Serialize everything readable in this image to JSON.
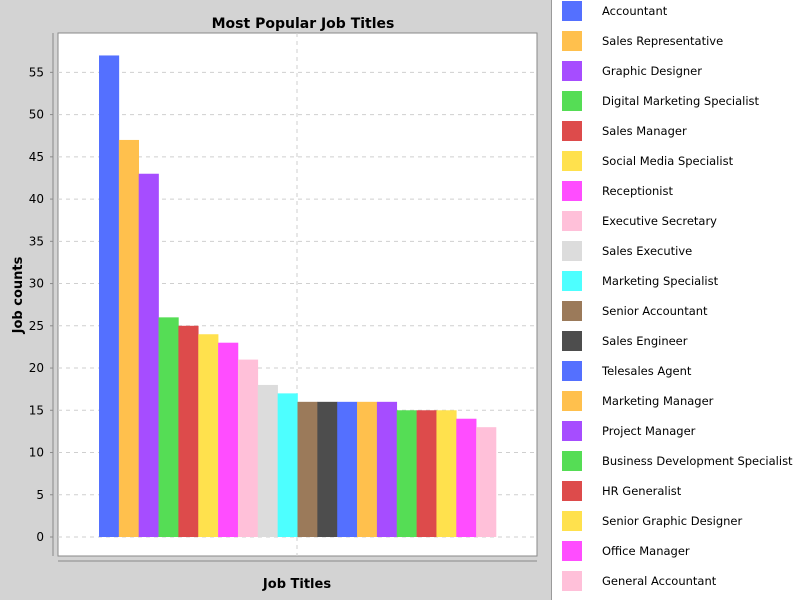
{
  "chart_data": {
    "type": "bar",
    "title": "Most Popular Job Titles",
    "xlabel": "Job Titles",
    "ylabel": "Job counts",
    "ylim": [
      0,
      59
    ],
    "yticks": [
      0,
      5,
      10,
      15,
      20,
      25,
      30,
      35,
      40,
      45,
      50,
      55
    ],
    "grid": true,
    "legend_position": "right",
    "categories": [
      "Accountant",
      "Sales Representative",
      "Graphic Designer",
      "Digital Marketing Specialist",
      "Sales Manager",
      "Social Media Specialist",
      "Receptionist",
      "Executive Secretary",
      "Sales Executive",
      "Marketing Specialist",
      "Senior Accountant",
      "Sales Engineer",
      "Telesales Agent",
      "Marketing Manager",
      "Project Manager",
      "Business Development Specialist",
      "HR Generalist",
      "Senior Graphic Designer",
      "Office Manager",
      "General Accountant"
    ],
    "values": [
      57,
      47,
      43,
      26,
      25,
      24,
      23,
      21,
      18,
      17,
      16,
      16,
      16,
      16,
      16,
      15,
      15,
      15,
      14,
      13
    ],
    "colors": [
      "#5470ff",
      "#ffc04d",
      "#a64dff",
      "#55dd55",
      "#dd4b4b",
      "#ffe14d",
      "#ff4dff",
      "#ffc0d9",
      "#dcdcdc",
      "#4dffff",
      "#9b7a5a",
      "#4d4d4d",
      "#5470ff",
      "#ffc04d",
      "#a64dff",
      "#55dd55",
      "#dd4b4b",
      "#ffe14d",
      "#ff4dff",
      "#ffc0d9"
    ]
  }
}
